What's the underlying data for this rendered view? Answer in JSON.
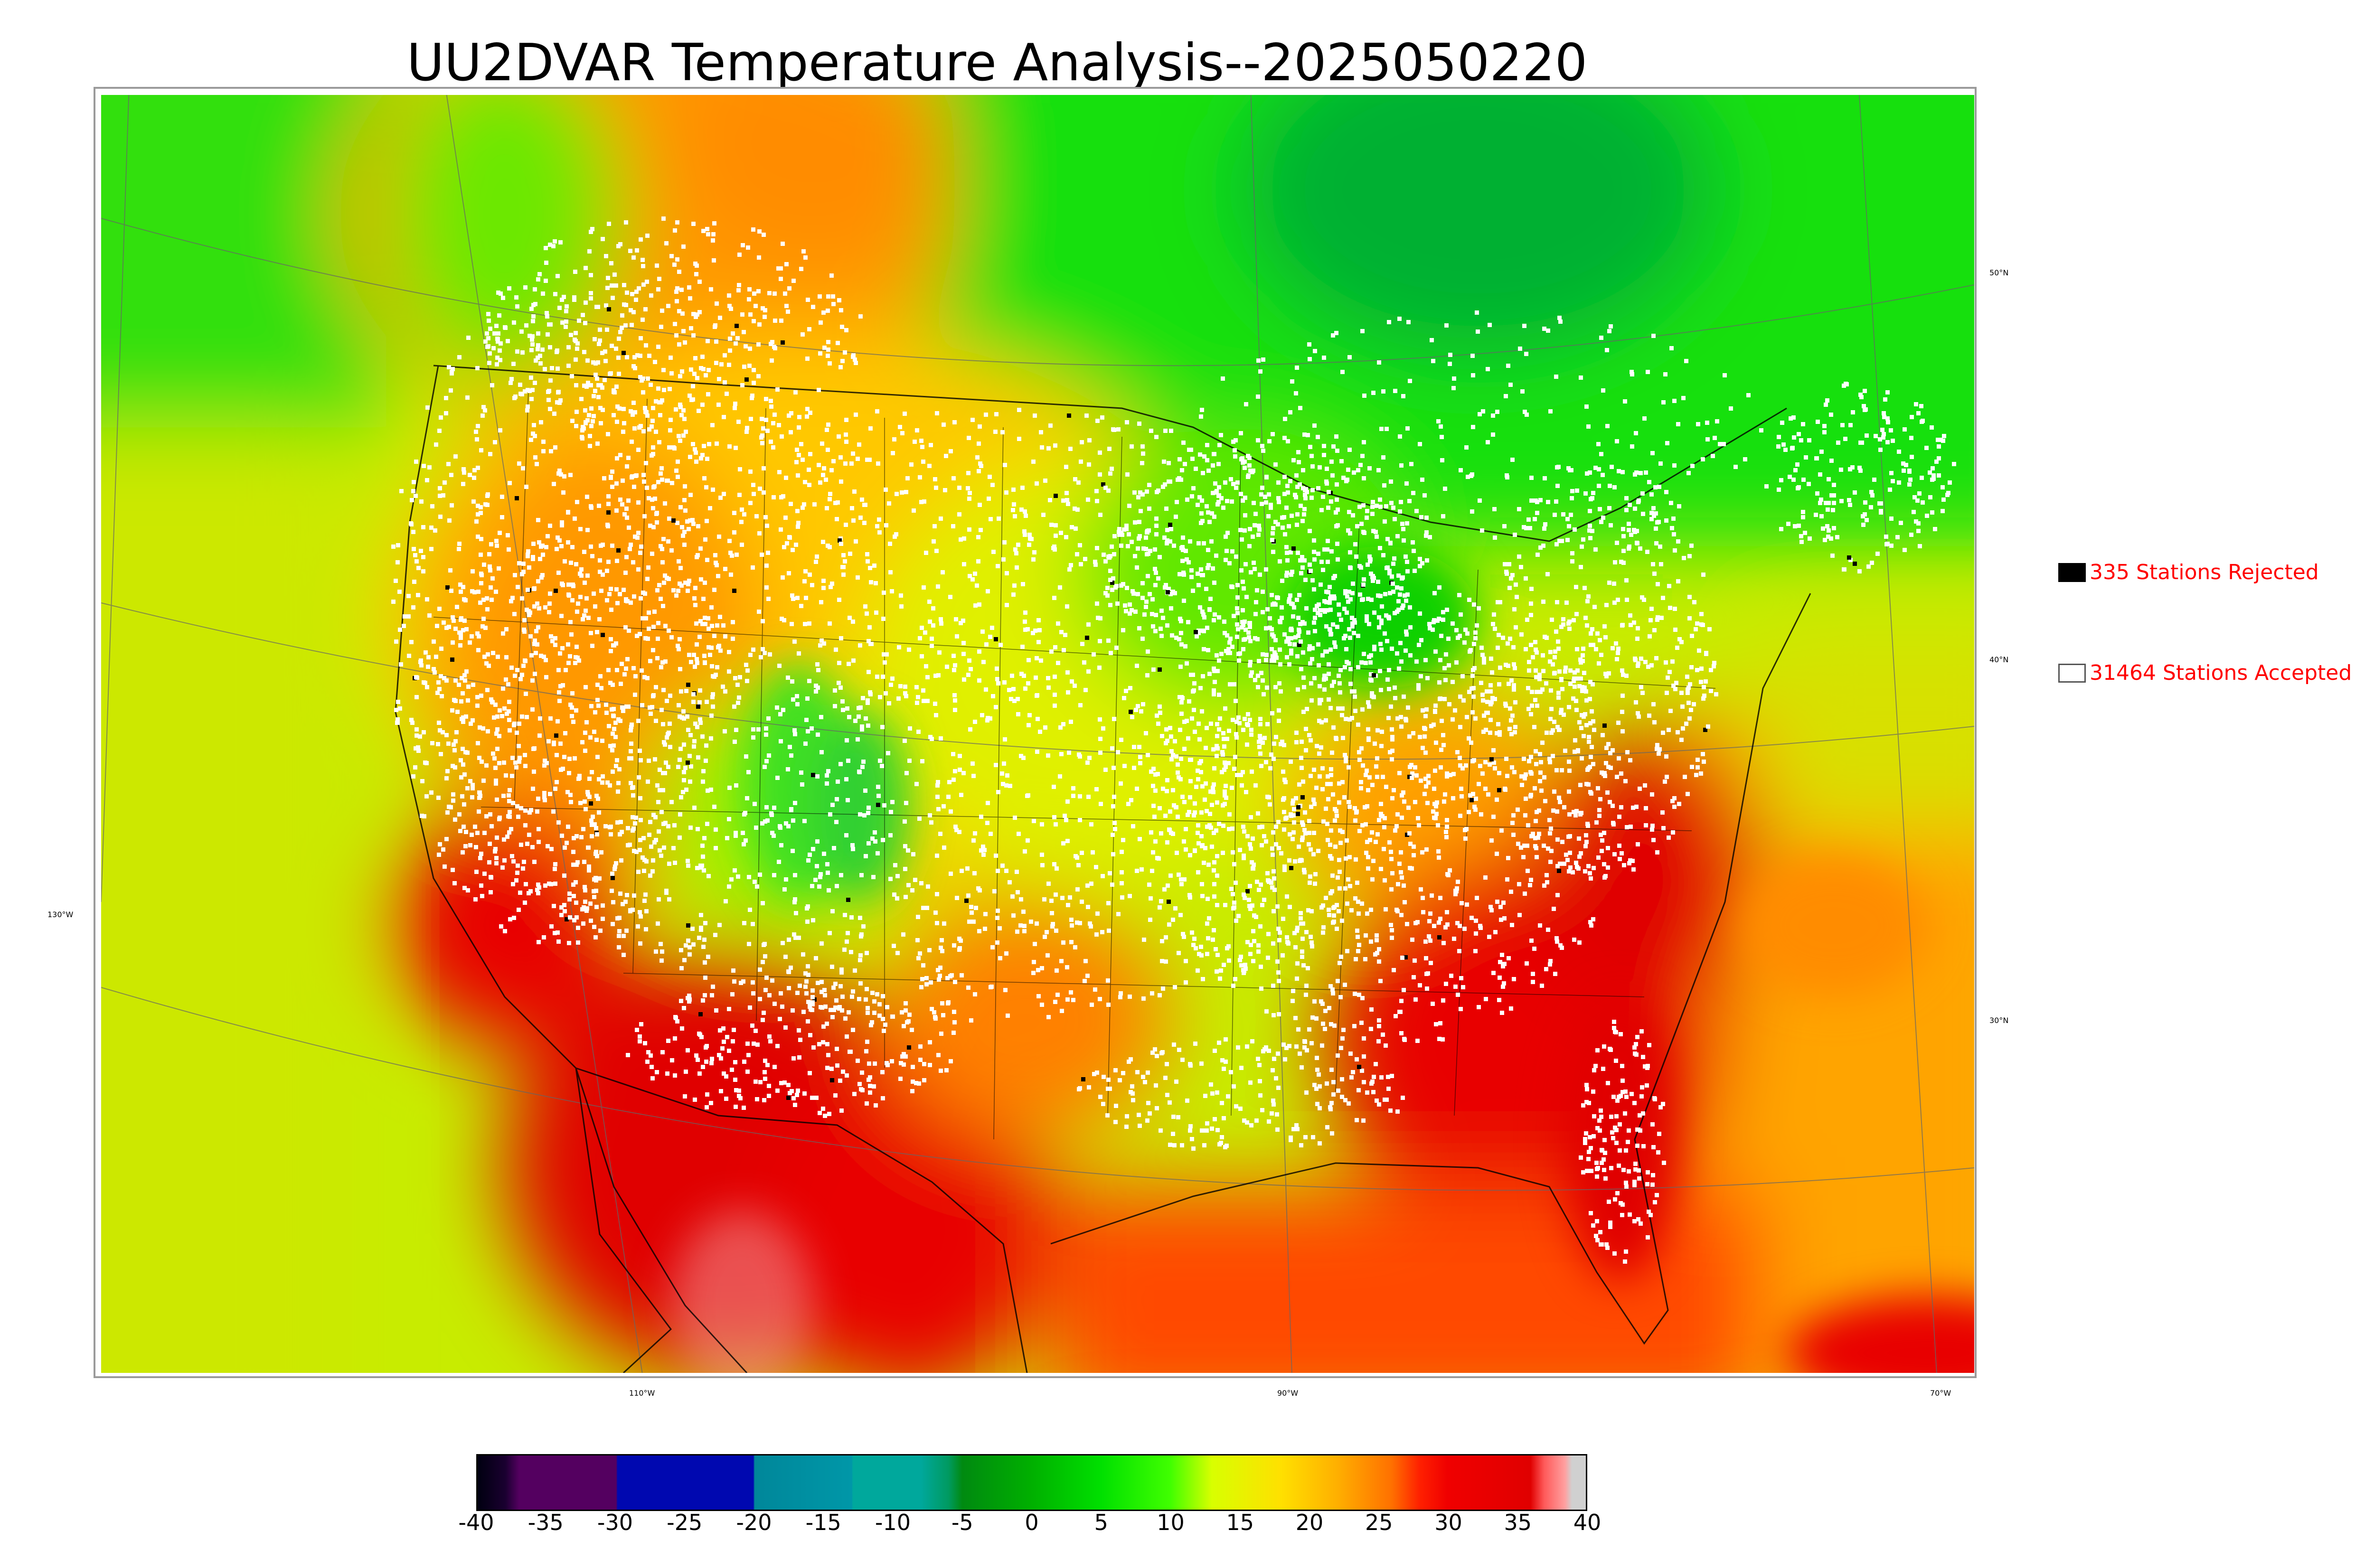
{
  "title": "UU2DVAR Temperature Analysis--2025050220",
  "legend": {
    "rejected": {
      "label": "335 Stations Rejected",
      "color": "#000000"
    },
    "accepted": {
      "label": "31464 Stations Accepted",
      "color": "#ffffff"
    }
  },
  "coordinates": {
    "lat_50": "50°N",
    "lat_40": "40°N",
    "lat_30": "30°N",
    "lon_130": "130°W",
    "lon_110": "110°W",
    "lon_90": "90°W",
    "lon_70": "70°W"
  },
  "colorbar": {
    "ticks": [
      "-40",
      "-35",
      "-30",
      "-25",
      "-20",
      "-15",
      "-10",
      "-5",
      "0",
      "5",
      "10",
      "15",
      "20",
      "25",
      "30",
      "35",
      "40"
    ],
    "stops": [
      {
        "v": -40,
        "c": "#000010"
      },
      {
        "v": -38,
        "c": "#1a0030"
      },
      {
        "v": -37,
        "c": "#540060"
      },
      {
        "v": -30,
        "c": "#540060"
      },
      {
        "v": -29.9,
        "c": "#0008b0"
      },
      {
        "v": -20.1,
        "c": "#0008b0"
      },
      {
        "v": -20,
        "c": "#00879a"
      },
      {
        "v": -13,
        "c": "#0097a8"
      },
      {
        "v": -12.9,
        "c": "#00a89c"
      },
      {
        "v": -8,
        "c": "#00a89c"
      },
      {
        "v": -6,
        "c": "#009a60"
      },
      {
        "v": -5,
        "c": "#008a10"
      },
      {
        "v": 0,
        "c": "#00b000"
      },
      {
        "v": 5,
        "c": "#00e000"
      },
      {
        "v": 10,
        "c": "#40ff00"
      },
      {
        "v": 13,
        "c": "#d8ff00"
      },
      {
        "v": 18,
        "c": "#ffe000"
      },
      {
        "v": 22,
        "c": "#ffb000"
      },
      {
        "v": 26,
        "c": "#ff7000"
      },
      {
        "v": 28,
        "c": "#ff2000"
      },
      {
        "v": 30,
        "c": "#f00000"
      },
      {
        "v": 36,
        "c": "#e00000"
      },
      {
        "v": 37,
        "c": "#ff5a5a"
      },
      {
        "v": 38.5,
        "c": "#ffa0a0"
      },
      {
        "v": 39,
        "c": "#d0d0d0"
      },
      {
        "v": 40,
        "c": "#d0d0d0"
      }
    ]
  },
  "colors": {
    "ocean_west": "#d8f000",
    "ocean_atlantic": "#ffa000",
    "gulf": "#ff4000",
    "canada": "#10e010",
    "hot": "#e80000",
    "station_accepted": "#ffffff",
    "station_rejected": "#000000",
    "label_red": "#ff0000"
  }
}
